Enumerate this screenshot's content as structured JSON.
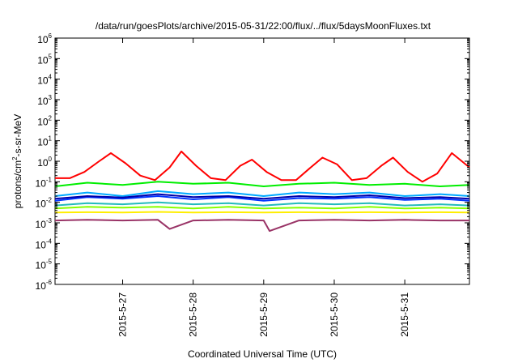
{
  "chart_data": {
    "type": "line",
    "title": "/data/run/goesPlots/archive/2015-05-31/22:00/flux/../flux/5daysMoonFluxes.txt",
    "xlabel": "Coordinated Universal Time (UTC)",
    "ylabel": {
      "base": "protons/cm",
      "sup": "2",
      "rest": "-s-sr-MeV"
    },
    "xlim": [
      "2015-05-26T01:00",
      "2015-05-31T22:00"
    ],
    "x_ticks": [
      "2015-5-27",
      "2015-5-28",
      "2015-5-29",
      "2015-5-30",
      "2015-5-31"
    ],
    "x_tick_dates": [
      "2015-05-27",
      "2015-05-28",
      "2015-05-29",
      "2015-05-30",
      "2015-05-31"
    ],
    "y_scale": "log",
    "ylim": [
      1e-06,
      1000000.0
    ],
    "y_ticks": [
      {
        "base": "10",
        "exp": "-6"
      },
      {
        "base": "10",
        "exp": "-5"
      },
      {
        "base": "10",
        "exp": "-4"
      },
      {
        "base": "10",
        "exp": "-3"
      },
      {
        "base": "10",
        "exp": "-2"
      },
      {
        "base": "10",
        "exp": "-1"
      },
      {
        "base": "10",
        "exp": "0"
      },
      {
        "base": "10",
        "exp": "1"
      },
      {
        "base": "10",
        "exp": "2"
      },
      {
        "base": "10",
        "exp": "3"
      },
      {
        "base": "10",
        "exp": "4"
      },
      {
        "base": "10",
        "exp": "5"
      },
      {
        "base": "10",
        "exp": "6"
      }
    ],
    "grid": false,
    "legend": "none",
    "series": [
      {
        "color": "#ff0000",
        "x": [
          "2015-05-26T01:00",
          "2015-05-26T06:00",
          "2015-05-26T11:00",
          "2015-05-26T16:00",
          "2015-05-26T20:00",
          "2015-05-27T01:00",
          "2015-05-27T06:00",
          "2015-05-27T11:00",
          "2015-05-27T16:00",
          "2015-05-27T20:00",
          "2015-05-28T01:00",
          "2015-05-28T06:00",
          "2015-05-28T11:00",
          "2015-05-28T16:00",
          "2015-05-28T20:00",
          "2015-05-29T01:00",
          "2015-05-29T06:00",
          "2015-05-29T11:00",
          "2015-05-29T16:00",
          "2015-05-29T20:00",
          "2015-05-30T01:00",
          "2015-05-30T06:00",
          "2015-05-30T11:00",
          "2015-05-30T16:00",
          "2015-05-30T20:00",
          "2015-05-31T01:00",
          "2015-05-31T06:00",
          "2015-05-31T11:00",
          "2015-05-31T16:00",
          "2015-05-31T22:00"
        ],
        "y": [
          0.15,
          0.15,
          0.3,
          1.0,
          2.5,
          0.8,
          0.2,
          0.12,
          0.5,
          3.0,
          0.6,
          0.15,
          0.12,
          0.6,
          1.2,
          0.3,
          0.12,
          0.12,
          0.5,
          1.5,
          0.7,
          0.12,
          0.15,
          0.6,
          1.5,
          0.3,
          0.1,
          0.25,
          2.5,
          0.5
        ]
      },
      {
        "color": "#00ee00",
        "x": [
          "2015-05-26T01:00",
          "2015-05-26T12:00",
          "2015-05-27T00:00",
          "2015-05-27T12:00",
          "2015-05-28T00:00",
          "2015-05-28T12:00",
          "2015-05-29T00:00",
          "2015-05-29T12:00",
          "2015-05-30T00:00",
          "2015-05-30T12:00",
          "2015-05-31T00:00",
          "2015-05-31T12:00",
          "2015-05-31T22:00"
        ],
        "y": [
          0.06,
          0.09,
          0.07,
          0.1,
          0.08,
          0.09,
          0.06,
          0.08,
          0.09,
          0.07,
          0.08,
          0.06,
          0.07
        ]
      },
      {
        "color": "#00aaff",
        "x": [
          "2015-05-26T01:00",
          "2015-05-26T12:00",
          "2015-05-27T00:00",
          "2015-05-27T12:00",
          "2015-05-28T00:00",
          "2015-05-28T12:00",
          "2015-05-29T00:00",
          "2015-05-29T12:00",
          "2015-05-30T00:00",
          "2015-05-30T12:00",
          "2015-05-31T00:00",
          "2015-05-31T12:00",
          "2015-05-31T22:00"
        ],
        "y": [
          0.02,
          0.03,
          0.02,
          0.035,
          0.025,
          0.03,
          0.02,
          0.03,
          0.025,
          0.03,
          0.02,
          0.025,
          0.02
        ]
      },
      {
        "color": "#0033ff",
        "x": [
          "2015-05-26T01:00",
          "2015-05-26T12:00",
          "2015-05-27T00:00",
          "2015-05-27T12:00",
          "2015-05-28T00:00",
          "2015-05-28T12:00",
          "2015-05-29T00:00",
          "2015-05-29T12:00",
          "2015-05-30T00:00",
          "2015-05-30T12:00",
          "2015-05-31T00:00",
          "2015-05-31T12:00",
          "2015-05-31T22:00"
        ],
        "y": [
          0.012,
          0.018,
          0.015,
          0.02,
          0.014,
          0.018,
          0.012,
          0.016,
          0.015,
          0.018,
          0.013,
          0.015,
          0.012
        ]
      },
      {
        "color": "#0000aa",
        "x": [
          "2015-05-26T01:00",
          "2015-05-26T12:00",
          "2015-05-27T00:00",
          "2015-05-27T12:00",
          "2015-05-28T00:00",
          "2015-05-28T12:00",
          "2015-05-29T00:00",
          "2015-05-29T12:00",
          "2015-05-30T00:00",
          "2015-05-30T12:00",
          "2015-05-31T00:00",
          "2015-05-31T12:00",
          "2015-05-31T22:00"
        ],
        "y": [
          0.015,
          0.02,
          0.017,
          0.025,
          0.018,
          0.02,
          0.015,
          0.02,
          0.018,
          0.022,
          0.016,
          0.018,
          0.015
        ]
      },
      {
        "color": "#22bbbb",
        "x": [
          "2015-05-26T01:00",
          "2015-05-26T12:00",
          "2015-05-27T00:00",
          "2015-05-27T12:00",
          "2015-05-28T00:00",
          "2015-05-28T12:00",
          "2015-05-29T00:00",
          "2015-05-29T12:00",
          "2015-05-30T00:00",
          "2015-05-30T12:00",
          "2015-05-31T00:00",
          "2015-05-31T12:00",
          "2015-05-31T22:00"
        ],
        "y": [
          0.007,
          0.009,
          0.008,
          0.01,
          0.008,
          0.009,
          0.007,
          0.009,
          0.008,
          0.009,
          0.007,
          0.008,
          0.007
        ]
      },
      {
        "color": "#88ff00",
        "x": [
          "2015-05-26T01:00",
          "2015-05-26T12:00",
          "2015-05-27T00:00",
          "2015-05-27T12:00",
          "2015-05-28T00:00",
          "2015-05-28T12:00",
          "2015-05-29T00:00",
          "2015-05-29T12:00",
          "2015-05-30T00:00",
          "2015-05-30T12:00",
          "2015-05-31T00:00",
          "2015-05-31T12:00",
          "2015-05-31T22:00"
        ],
        "y": [
          0.005,
          0.006,
          0.0055,
          0.006,
          0.005,
          0.006,
          0.005,
          0.0055,
          0.005,
          0.006,
          0.005,
          0.0055,
          0.005
        ]
      },
      {
        "color": "#ffee00",
        "x": [
          "2015-05-26T01:00",
          "2015-05-26T12:00",
          "2015-05-27T00:00",
          "2015-05-27T12:00",
          "2015-05-28T00:00",
          "2015-05-28T12:00",
          "2015-05-29T00:00",
          "2015-05-29T12:00",
          "2015-05-30T00:00",
          "2015-05-30T12:00",
          "2015-05-31T00:00",
          "2015-05-31T12:00",
          "2015-05-31T22:00"
        ],
        "y": [
          0.0032,
          0.0033,
          0.0032,
          0.0034,
          0.0032,
          0.0033,
          0.0032,
          0.0033,
          0.0032,
          0.0033,
          0.0032,
          0.0033,
          0.0032
        ]
      },
      {
        "color": "#993366",
        "x": [
          "2015-05-26T01:00",
          "2015-05-26T12:00",
          "2015-05-27T00:00",
          "2015-05-27T12:00",
          "2015-05-27T16:00",
          "2015-05-28T00:00",
          "2015-05-28T12:00",
          "2015-05-29T00:00",
          "2015-05-29T02:00",
          "2015-05-29T12:00",
          "2015-05-30T00:00",
          "2015-05-30T12:00",
          "2015-05-31T00:00",
          "2015-05-31T12:00",
          "2015-05-31T22:00"
        ],
        "y": [
          0.0013,
          0.0014,
          0.0013,
          0.0014,
          0.0005,
          0.0013,
          0.0014,
          0.0013,
          0.0004,
          0.0013,
          0.0014,
          0.0013,
          0.0014,
          0.0013,
          0.0013
        ]
      }
    ]
  }
}
